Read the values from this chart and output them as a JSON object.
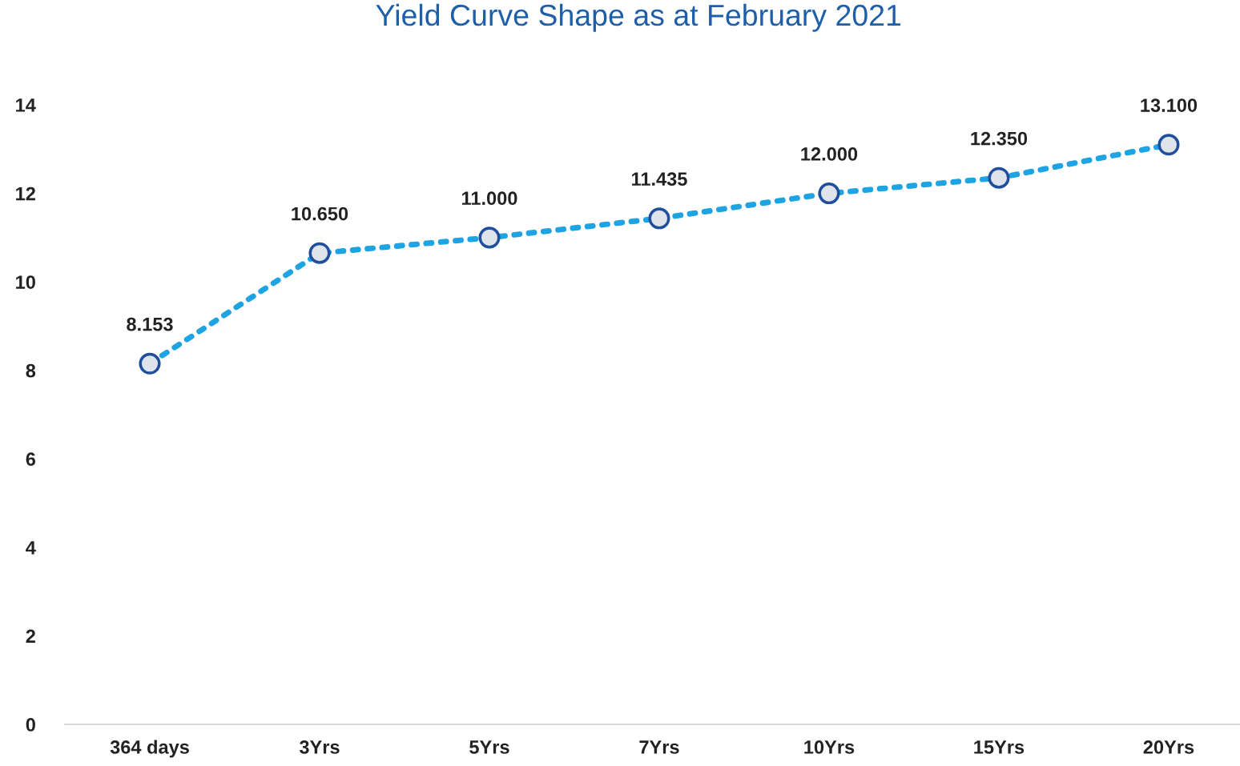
{
  "chart_data": {
    "type": "line",
    "title": "Yield Curve Shape as at February 2021",
    "categories": [
      "364 days",
      "3Yrs",
      "5Yrs",
      "7Yrs",
      "10Yrs",
      "15Yrs",
      "20Yrs"
    ],
    "series": [
      {
        "color": "#1ea3e3",
        "values": [
          8.153,
          10.65,
          11.0,
          11.435,
          12.0,
          12.35,
          13.1
        ]
      }
    ],
    "value_labels": [
      "8.153",
      "10.650",
      "11.000",
      "11.435",
      "12.000",
      "12.350",
      "13.100"
    ],
    "ylim": [
      0,
      14
    ],
    "yticks": [
      0,
      2,
      4,
      6,
      8,
      10,
      12,
      14
    ],
    "grid": false,
    "legend": false,
    "marker": "circle",
    "line_style": "dotted"
  }
}
